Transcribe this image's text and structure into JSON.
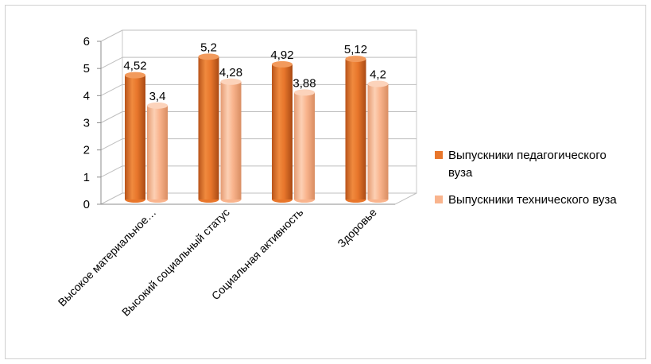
{
  "chart_data": {
    "type": "bar",
    "categories": [
      "Высокое материальное…",
      "Высокий социальный статус",
      "Социальная активность",
      "Здоровье"
    ],
    "series": [
      {
        "name": "Выпускники педагогического вуза",
        "values": [
          4.52,
          5.2,
          4.92,
          5.12
        ],
        "labels": [
          "4,52",
          "5,2",
          "4,92",
          "5,12"
        ],
        "color": "#e8762b"
      },
      {
        "name": "Выпускники технического вуза",
        "values": [
          3.4,
          4.28,
          3.88,
          4.2
        ],
        "labels": [
          "3,4",
          "4,28",
          "3,88",
          "4,2"
        ],
        "color": "#f9b48d"
      }
    ],
    "yticks": [
      "0",
      "1",
      "2",
      "3",
      "4",
      "5",
      "6"
    ],
    "ylim": [
      0,
      6
    ],
    "grid": true,
    "legend_position": "right",
    "style": "3d-cylinder"
  }
}
